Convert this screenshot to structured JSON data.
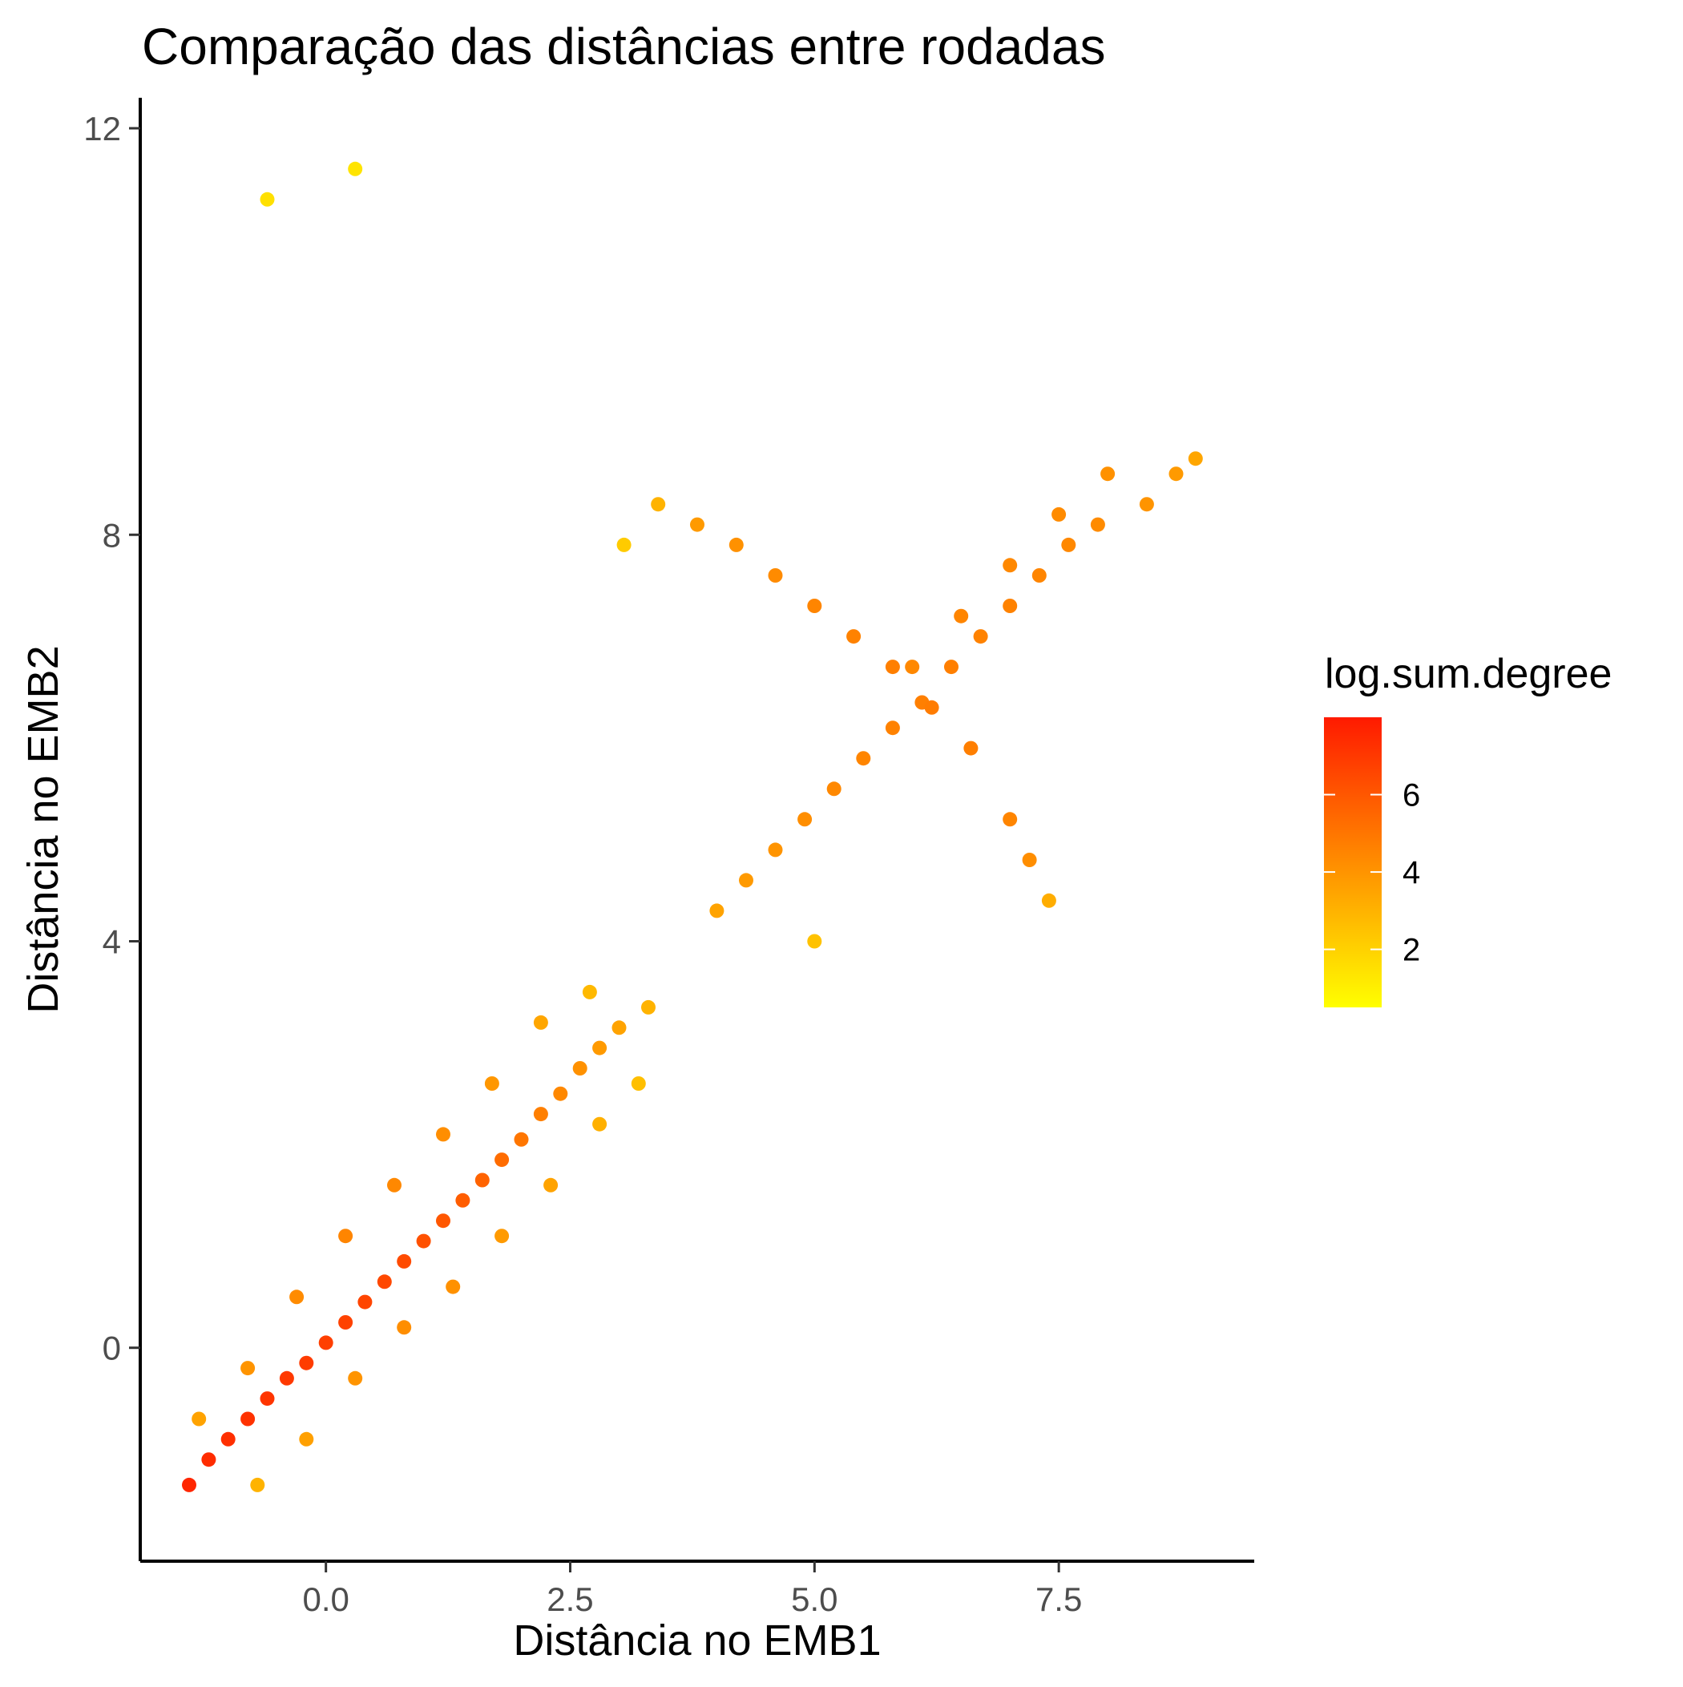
{
  "chart_data": {
    "type": "scatter",
    "title": "Comparação das distâncias entre rodadas",
    "xlabel": "Distância no EMB1",
    "ylabel": "Distância no EMB2",
    "xlim": [
      -1.9,
      9.5
    ],
    "ylim": [
      -2.1,
      12.3
    ],
    "x_ticks": [
      0.0,
      2.5,
      5.0,
      7.5
    ],
    "x_tick_labels": [
      "0.0",
      "2.5",
      "5.0",
      "7.5"
    ],
    "y_ticks": [
      0,
      4,
      8,
      12
    ],
    "y_tick_labels": [
      "0",
      "4",
      "8",
      "12"
    ],
    "grid": false,
    "color_variable": "log.sum.degree",
    "color_scale": {
      "low": "#FFFF00",
      "high": "#FF1A00",
      "range": [
        0.5,
        8.0
      ],
      "breaks": [
        2,
        4,
        6
      ],
      "break_labels": [
        "2",
        "4",
        "6"
      ]
    },
    "legend": {
      "title": "log.sum.degree",
      "position": "right"
    },
    "series": [
      {
        "points": [
          [
            -1.4,
            -1.35,
            7.6
          ],
          [
            -1.2,
            -1.1,
            7.4
          ],
          [
            -1.0,
            -0.9,
            7.3
          ],
          [
            -0.8,
            -0.7,
            7.2
          ],
          [
            -0.6,
            -0.5,
            7.1
          ],
          [
            -0.4,
            -0.3,
            7.0
          ],
          [
            -0.2,
            -0.15,
            6.9
          ],
          [
            0.0,
            0.05,
            6.8
          ],
          [
            0.2,
            0.25,
            6.7
          ],
          [
            0.4,
            0.45,
            6.6
          ],
          [
            0.6,
            0.65,
            6.5
          ],
          [
            0.8,
            0.85,
            6.4
          ],
          [
            1.0,
            1.05,
            6.2
          ],
          [
            1.2,
            1.25,
            6.0
          ],
          [
            1.4,
            1.45,
            5.8
          ],
          [
            1.6,
            1.65,
            5.6
          ],
          [
            1.8,
            1.85,
            5.3
          ],
          [
            2.0,
            2.05,
            5.0
          ],
          [
            2.2,
            2.3,
            4.7
          ],
          [
            2.4,
            2.5,
            4.4
          ],
          [
            2.6,
            2.75,
            4.1
          ],
          [
            2.8,
            2.95,
            3.8
          ],
          [
            3.0,
            3.15,
            3.5
          ],
          [
            3.3,
            3.35,
            3.0
          ],
          [
            -1.3,
            -0.7,
            3.5
          ],
          [
            -0.8,
            -0.2,
            4.0
          ],
          [
            -0.3,
            0.5,
            4.3
          ],
          [
            0.2,
            1.1,
            4.5
          ],
          [
            0.7,
            1.6,
            4.4
          ],
          [
            1.2,
            2.1,
            4.2
          ],
          [
            1.7,
            2.6,
            3.9
          ],
          [
            2.2,
            3.2,
            3.4
          ],
          [
            2.7,
            3.5,
            2.8
          ],
          [
            -0.7,
            -1.35,
            3.0
          ],
          [
            -0.2,
            -0.9,
            3.6
          ],
          [
            0.3,
            -0.3,
            4.0
          ],
          [
            0.8,
            0.2,
            4.2
          ],
          [
            1.3,
            0.6,
            4.1
          ],
          [
            1.8,
            1.1,
            3.8
          ],
          [
            2.3,
            1.6,
            3.5
          ],
          [
            2.8,
            2.2,
            3.1
          ],
          [
            3.2,
            2.6,
            2.6
          ],
          [
            4.0,
            4.3,
            3.5
          ],
          [
            4.3,
            4.6,
            3.8
          ],
          [
            4.6,
            4.9,
            4.0
          ],
          [
            4.9,
            5.2,
            4.2
          ],
          [
            5.2,
            5.5,
            4.4
          ],
          [
            5.5,
            5.8,
            4.5
          ],
          [
            5.8,
            6.1,
            4.6
          ],
          [
            6.1,
            6.35,
            4.7
          ],
          [
            6.4,
            6.7,
            4.7
          ],
          [
            6.7,
            7.0,
            4.6
          ],
          [
            7.0,
            7.3,
            4.6
          ],
          [
            7.3,
            7.6,
            4.5
          ],
          [
            7.6,
            7.9,
            4.4
          ],
          [
            7.9,
            8.1,
            4.3
          ],
          [
            6.0,
            6.7,
            4.4
          ],
          [
            6.5,
            7.2,
            4.5
          ],
          [
            7.0,
            7.7,
            4.4
          ],
          [
            7.5,
            8.2,
            4.3
          ],
          [
            8.0,
            8.6,
            4.1
          ],
          [
            8.4,
            8.3,
            4.0
          ],
          [
            8.7,
            8.6,
            3.8
          ],
          [
            8.9,
            8.75,
            3.4
          ],
          [
            3.4,
            8.3,
            3.0
          ],
          [
            3.8,
            8.1,
            3.8
          ],
          [
            4.2,
            7.9,
            4.1
          ],
          [
            4.6,
            7.6,
            4.3
          ],
          [
            5.0,
            7.3,
            4.5
          ],
          [
            5.4,
            7.0,
            4.6
          ],
          [
            5.8,
            6.7,
            4.7
          ],
          [
            6.2,
            6.3,
            4.8
          ],
          [
            6.6,
            5.9,
            4.7
          ],
          [
            7.0,
            5.2,
            4.5
          ],
          [
            7.2,
            4.8,
            4.2
          ],
          [
            7.4,
            4.4,
            3.2
          ],
          [
            -0.6,
            11.3,
            1.5
          ],
          [
            0.3,
            11.6,
            1.4
          ],
          [
            3.05,
            7.9,
            2.2
          ],
          [
            5.0,
            4.0,
            2.5
          ]
        ]
      }
    ]
  }
}
